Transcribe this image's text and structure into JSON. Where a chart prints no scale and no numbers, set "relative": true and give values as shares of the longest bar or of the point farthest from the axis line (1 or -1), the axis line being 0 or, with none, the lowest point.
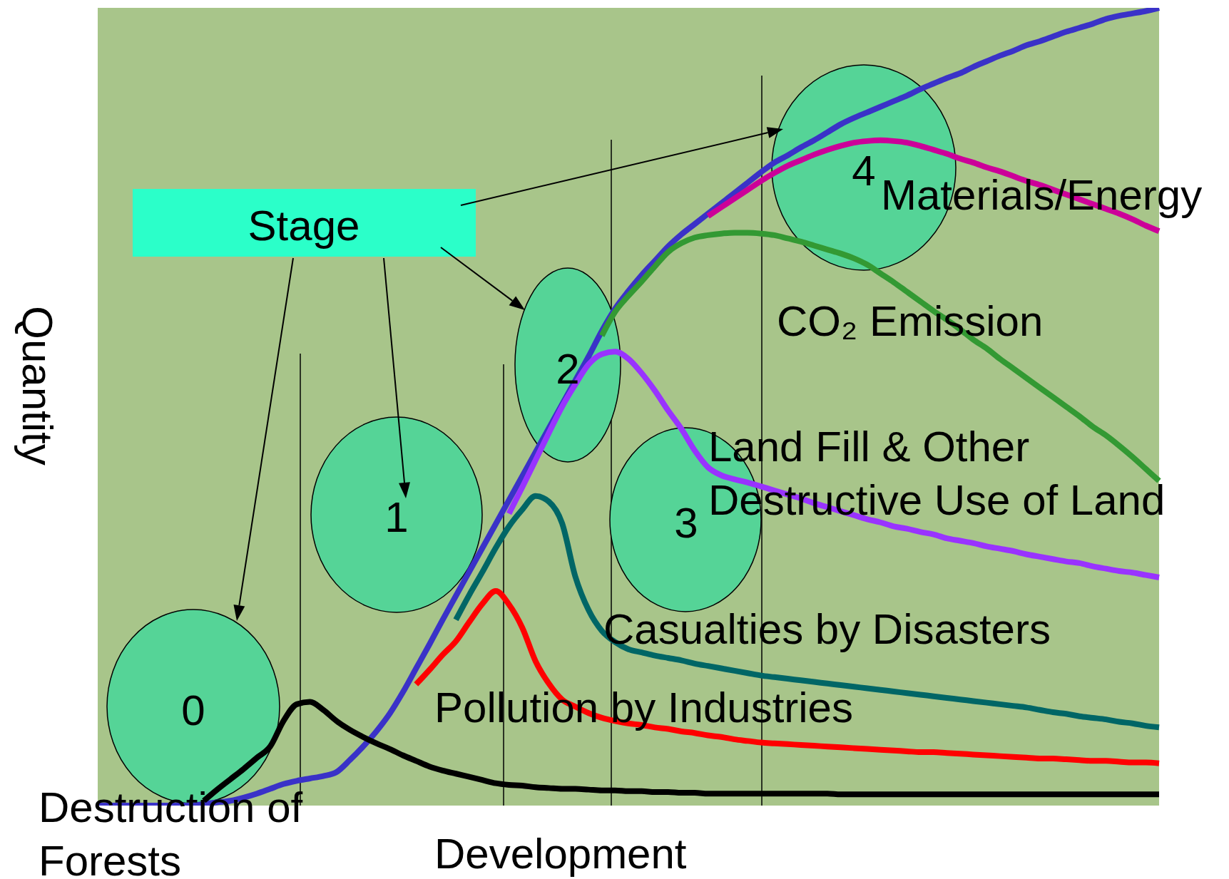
{
  "chart_data": {
    "type": "line",
    "relative": true,
    "xlabel": "Development",
    "ylabel": "Quantity",
    "annotations": [
      "Stage",
      "0",
      "1",
      "2",
      "3",
      "4"
    ],
    "categories": [
      null,
      null,
      null,
      null,
      null,
      null,
      null,
      null,
      null,
      null,
      null,
      null,
      null,
      null,
      null,
      null,
      null,
      null,
      null,
      null,
      null,
      null,
      null,
      null,
      null,
      null,
      null,
      null,
      null,
      null,
      null,
      null,
      null,
      null,
      null,
      null,
      null,
      null,
      null,
      null,
      null,
      null,
      null,
      null,
      null,
      null,
      null,
      null,
      null,
      null,
      null,
      null,
      null,
      null,
      null,
      null,
      null,
      null,
      null,
      null,
      null,
      null,
      null,
      null,
      null,
      null,
      null,
      null,
      null,
      null,
      null,
      null,
      null,
      null,
      null,
      null,
      null,
      null,
      null,
      null,
      null
    ],
    "series": [
      {
        "color": "#3a32c8",
        "values": [
          0,
          0,
          0,
          0,
          0,
          0,
          0,
          0,
          0.002,
          0.004,
          0.006,
          0.01,
          0.015,
          0.021,
          0.027,
          0.031,
          0.034,
          0.037,
          0.042,
          0.057,
          0.074,
          0.093,
          0.115,
          0.142,
          0.172,
          0.202,
          0.233,
          0.263,
          0.293,
          0.323,
          0.353,
          0.383,
          0.413,
          0.443,
          0.473,
          0.503,
          0.533,
          0.563,
          0.595,
          0.623,
          0.645,
          0.665,
          0.683,
          0.701,
          0.716,
          0.729,
          0.742,
          0.755,
          0.768,
          0.781,
          0.794,
          0.806,
          0.815,
          0.825,
          0.834,
          0.844,
          0.854,
          0.862,
          0.869,
          0.876,
          0.883,
          0.89,
          0.898,
          0.905,
          0.912,
          0.918,
          0.926,
          0.933,
          0.94,
          0.946,
          0.953,
          0.958,
          0.964,
          0.97,
          0.975,
          0.98,
          0.986,
          0.99,
          0.993,
          0.996,
          1.0
        ]
      },
      {
        "name": "Materials/Energy",
        "color": "#cc0099",
        "values": [
          null,
          null,
          null,
          null,
          null,
          null,
          null,
          null,
          null,
          null,
          null,
          null,
          null,
          null,
          null,
          null,
          null,
          null,
          null,
          null,
          null,
          null,
          null,
          null,
          null,
          null,
          null,
          null,
          null,
          null,
          null,
          null,
          null,
          null,
          null,
          null,
          null,
          null,
          null,
          null,
          null,
          null,
          null,
          null,
          null,
          null,
          0.739,
          0.75,
          0.761,
          0.772,
          0.783,
          0.793,
          0.802,
          0.809,
          0.816,
          0.822,
          0.827,
          0.831,
          0.833,
          0.834,
          0.833,
          0.831,
          0.827,
          0.822,
          0.817,
          0.811,
          0.806,
          0.8,
          0.795,
          0.789,
          0.783,
          0.778,
          0.772,
          0.766,
          0.76,
          0.754,
          0.748,
          0.742,
          0.735,
          0.727,
          0.72
        ]
      },
      {
        "name": "CO₂ Emission",
        "color": "#339933",
        "values": [
          null,
          null,
          null,
          null,
          null,
          null,
          null,
          null,
          null,
          null,
          null,
          null,
          null,
          null,
          null,
          null,
          null,
          null,
          null,
          null,
          null,
          null,
          null,
          null,
          null,
          null,
          null,
          null,
          null,
          null,
          null,
          null,
          null,
          null,
          null,
          null,
          null,
          null,
          0.589,
          0.619,
          0.639,
          0.657,
          0.676,
          0.694,
          0.705,
          0.712,
          0.715,
          0.717,
          0.718,
          0.718,
          0.717,
          0.715,
          0.711,
          0.707,
          0.702,
          0.697,
          0.692,
          0.686,
          0.678,
          0.667,
          0.656,
          0.644,
          0.632,
          0.62,
          0.609,
          0.597,
          0.584,
          0.573,
          0.56,
          0.548,
          0.536,
          0.524,
          0.512,
          0.5,
          0.488,
          0.475,
          0.464,
          0.451,
          0.437,
          0.422,
          0.407
        ]
      },
      {
        "name": "Land Fill & Other\nDestructive Use of Land",
        "color": "#9933ff",
        "values": [
          null,
          null,
          null,
          null,
          null,
          null,
          null,
          null,
          null,
          null,
          null,
          null,
          null,
          null,
          null,
          null,
          null,
          null,
          null,
          null,
          null,
          null,
          null,
          null,
          null,
          null,
          null,
          null,
          null,
          null,
          null,
          0.366,
          0.399,
          0.433,
          0.467,
          0.5,
          0.528,
          0.553,
          0.566,
          0.569,
          0.56,
          0.542,
          0.52,
          0.495,
          0.472,
          0.445,
          0.424,
          0.414,
          0.409,
          0.405,
          0.4,
          0.395,
          0.39,
          0.385,
          0.379,
          0.374,
          0.369,
          0.364,
          0.359,
          0.355,
          0.35,
          0.347,
          0.343,
          0.34,
          0.335,
          0.332,
          0.329,
          0.325,
          0.322,
          0.319,
          0.315,
          0.312,
          0.309,
          0.306,
          0.304,
          0.3,
          0.297,
          0.294,
          0.292,
          0.289,
          0.286
        ]
      },
      {
        "name": "Casualties by Disasters",
        "color": "#006666",
        "values": [
          null,
          null,
          null,
          null,
          null,
          null,
          null,
          null,
          null,
          null,
          null,
          null,
          null,
          null,
          null,
          null,
          null,
          null,
          null,
          null,
          null,
          null,
          null,
          null,
          null,
          null,
          null,
          0.233,
          0.264,
          0.293,
          0.323,
          0.35,
          0.371,
          0.388,
          0.381,
          0.354,
          0.287,
          0.245,
          0.219,
          0.205,
          0.196,
          0.192,
          0.188,
          0.185,
          0.182,
          0.178,
          0.175,
          0.172,
          0.169,
          0.166,
          0.163,
          0.161,
          0.159,
          0.157,
          0.155,
          0.153,
          0.151,
          0.149,
          0.147,
          0.145,
          0.143,
          0.141,
          0.139,
          0.137,
          0.135,
          0.133,
          0.131,
          0.129,
          0.127,
          0.125,
          0.123,
          0.12,
          0.117,
          0.115,
          0.112,
          0.11,
          0.108,
          0.105,
          0.103,
          0.1,
          0.098
        ]
      },
      {
        "name": "Pollution by Industries",
        "color": "#ff0000",
        "values": [
          null,
          null,
          null,
          null,
          null,
          null,
          null,
          null,
          null,
          null,
          null,
          null,
          null,
          null,
          null,
          null,
          null,
          null,
          null,
          null,
          null,
          null,
          null,
          null,
          0.152,
          0.17,
          0.189,
          0.206,
          0.23,
          0.253,
          0.269,
          0.252,
          0.223,
          0.181,
          0.153,
          0.133,
          0.124,
          0.116,
          0.11,
          0.106,
          0.103,
          0.101,
          0.098,
          0.096,
          0.093,
          0.091,
          0.088,
          0.086,
          0.083,
          0.081,
          0.079,
          0.078,
          0.077,
          0.076,
          0.075,
          0.074,
          0.073,
          0.072,
          0.071,
          0.07,
          0.069,
          0.068,
          0.067,
          0.067,
          0.066,
          0.065,
          0.064,
          0.063,
          0.062,
          0.061,
          0.06,
          0.059,
          0.059,
          0.058,
          0.057,
          0.056,
          0.056,
          0.055,
          0.054,
          0.054,
          0.053
        ]
      },
      {
        "name": "Destruction of\nForests",
        "color": "#000000",
        "values": [
          null,
          null,
          null,
          null,
          null,
          null,
          null,
          null,
          0.006,
          0.02,
          0.033,
          0.046,
          0.06,
          0.074,
          0.106,
          0.127,
          0.13,
          0.12,
          0.106,
          0.095,
          0.086,
          0.078,
          0.071,
          0.063,
          0.056,
          0.049,
          0.044,
          0.04,
          0.036,
          0.032,
          0.028,
          0.026,
          0.025,
          0.023,
          0.022,
          0.021,
          0.021,
          0.02,
          0.019,
          0.019,
          0.018,
          0.018,
          0.017,
          0.017,
          0.016,
          0.016,
          0.015,
          0.015,
          0.015,
          0.015,
          0.015,
          0.015,
          0.015,
          0.015,
          0.015,
          0.015,
          0.014,
          0.014,
          0.014,
          0.014,
          0.014,
          0.014,
          0.014,
          0.014,
          0.014,
          0.014,
          0.014,
          0.014,
          0.014,
          0.014,
          0.014,
          0.014,
          0.014,
          0.014,
          0.014,
          0.014,
          0.014,
          0.014,
          0.014,
          0.014,
          0.014
        ]
      }
    ]
  }
}
